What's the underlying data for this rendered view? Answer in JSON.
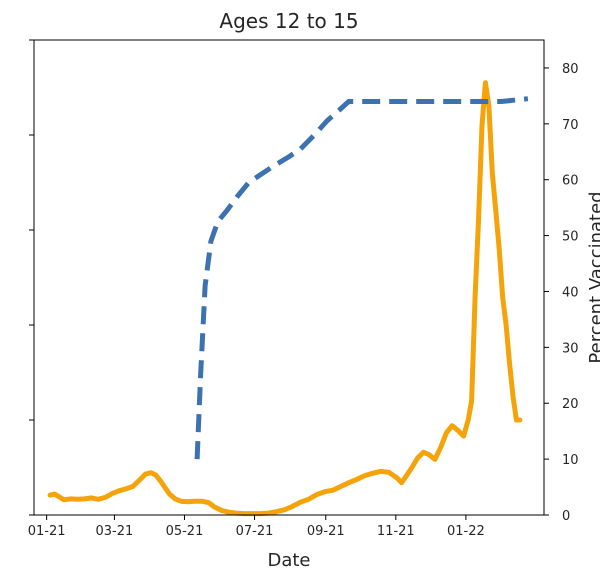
{
  "chart_data": {
    "type": "line",
    "title": "Ages 12 to 15",
    "xlabel": "Date",
    "ylabel_right": "Percent Vaccinated",
    "x_tick_labels": [
      "01-21",
      "03-21",
      "05-21",
      "07-21",
      "09-21",
      "11-21",
      "01-22"
    ],
    "x_ticks": [
      "2021-01-01",
      "2021-03-01",
      "2021-05-01",
      "2021-07-01",
      "2021-09-01",
      "2021-11-01",
      "2022-01-01"
    ],
    "xlim": [
      "2020-12-21",
      "2022-03-10"
    ],
    "y_right_ticks": [
      0,
      10,
      20,
      30,
      40,
      50,
      60,
      70,
      80
    ],
    "y_right_lim": [
      0,
      85
    ],
    "y_left_lim": [
      0,
      1
    ],
    "y_left_ticks": [
      0,
      0.2,
      0.4,
      0.6,
      0.8,
      1.0
    ],
    "grid": false,
    "series": [
      {
        "color": "#f5a30a",
        "style": "solid",
        "axis": "left",
        "x": [
          "2021-01-04",
          "2021-01-08",
          "2021-01-12",
          "2021-01-16",
          "2021-01-22",
          "2021-01-28",
          "2021-02-03",
          "2021-02-09",
          "2021-02-15",
          "2021-02-21",
          "2021-02-27",
          "2021-03-05",
          "2021-03-11",
          "2021-03-17",
          "2021-03-23",
          "2021-03-28",
          "2021-04-02",
          "2021-04-06",
          "2021-04-10",
          "2021-04-14",
          "2021-04-18",
          "2021-04-23",
          "2021-04-28",
          "2021-05-04",
          "2021-05-10",
          "2021-05-16",
          "2021-05-22",
          "2021-05-27",
          "2021-06-02",
          "2021-06-08",
          "2021-06-15",
          "2021-06-22",
          "2021-06-29",
          "2021-07-06",
          "2021-07-13",
          "2021-07-20",
          "2021-07-27",
          "2021-08-03",
          "2021-08-10",
          "2021-08-17",
          "2021-08-24",
          "2021-08-31",
          "2021-09-07",
          "2021-09-14",
          "2021-09-21",
          "2021-09-28",
          "2021-10-05",
          "2021-10-12",
          "2021-10-19",
          "2021-10-26",
          "2021-11-02",
          "2021-11-06",
          "2021-11-10",
          "2021-11-15",
          "2021-11-20",
          "2021-11-25",
          "2021-11-30",
          "2021-12-05",
          "2021-12-10",
          "2021-12-15",
          "2021-12-20",
          "2021-12-25",
          "2021-12-30",
          "2022-01-03",
          "2022-01-06",
          "2022-01-09",
          "2022-01-12",
          "2022-01-15",
          "2022-01-18",
          "2022-01-21",
          "2022-01-24",
          "2022-01-27",
          "2022-01-30",
          "2022-02-02",
          "2022-02-05",
          "2022-02-08",
          "2022-02-11",
          "2022-02-14",
          "2022-02-17"
        ],
        "y": [
          0.042,
          0.044,
          0.038,
          0.032,
          0.034,
          0.033,
          0.034,
          0.036,
          0.033,
          0.037,
          0.045,
          0.051,
          0.055,
          0.06,
          0.074,
          0.086,
          0.089,
          0.084,
          0.072,
          0.058,
          0.044,
          0.034,
          0.029,
          0.028,
          0.029,
          0.029,
          0.026,
          0.017,
          0.01,
          0.006,
          0.004,
          0.003,
          0.003,
          0.003,
          0.004,
          0.007,
          0.011,
          0.018,
          0.027,
          0.033,
          0.043,
          0.049,
          0.052,
          0.06,
          0.068,
          0.075,
          0.083,
          0.088,
          0.092,
          0.09,
          0.078,
          0.068,
          0.082,
          0.1,
          0.12,
          0.132,
          0.127,
          0.117,
          0.142,
          0.173,
          0.188,
          0.178,
          0.166,
          0.2,
          0.24,
          0.46,
          0.62,
          0.82,
          0.91,
          0.86,
          0.72,
          0.64,
          0.56,
          0.46,
          0.4,
          0.32,
          0.25,
          0.2,
          0.2
        ]
      },
      {
        "color": "#3d72b0",
        "style": "dashed",
        "axis": "right",
        "x": [
          "2021-05-12",
          "2021-05-15",
          "2021-05-19",
          "2021-05-24",
          "2021-05-30",
          "2021-06-07",
          "2021-06-16",
          "2021-06-26",
          "2021-07-07",
          "2021-07-18",
          "2021-07-30",
          "2021-08-10",
          "2021-08-22",
          "2021-09-02",
          "2021-09-13",
          "2021-09-21",
          "2021-10-01",
          "2021-11-01",
          "2021-12-01",
          "2022-01-01",
          "2022-02-01",
          "2022-02-24"
        ],
        "y": [
          10,
          25,
          41,
          49,
          52.5,
          54.5,
          57,
          59.5,
          61,
          62.5,
          64,
          65.5,
          68,
          70.5,
          72.5,
          74,
          74,
          74,
          74,
          74,
          74,
          74.5
        ]
      }
    ]
  }
}
